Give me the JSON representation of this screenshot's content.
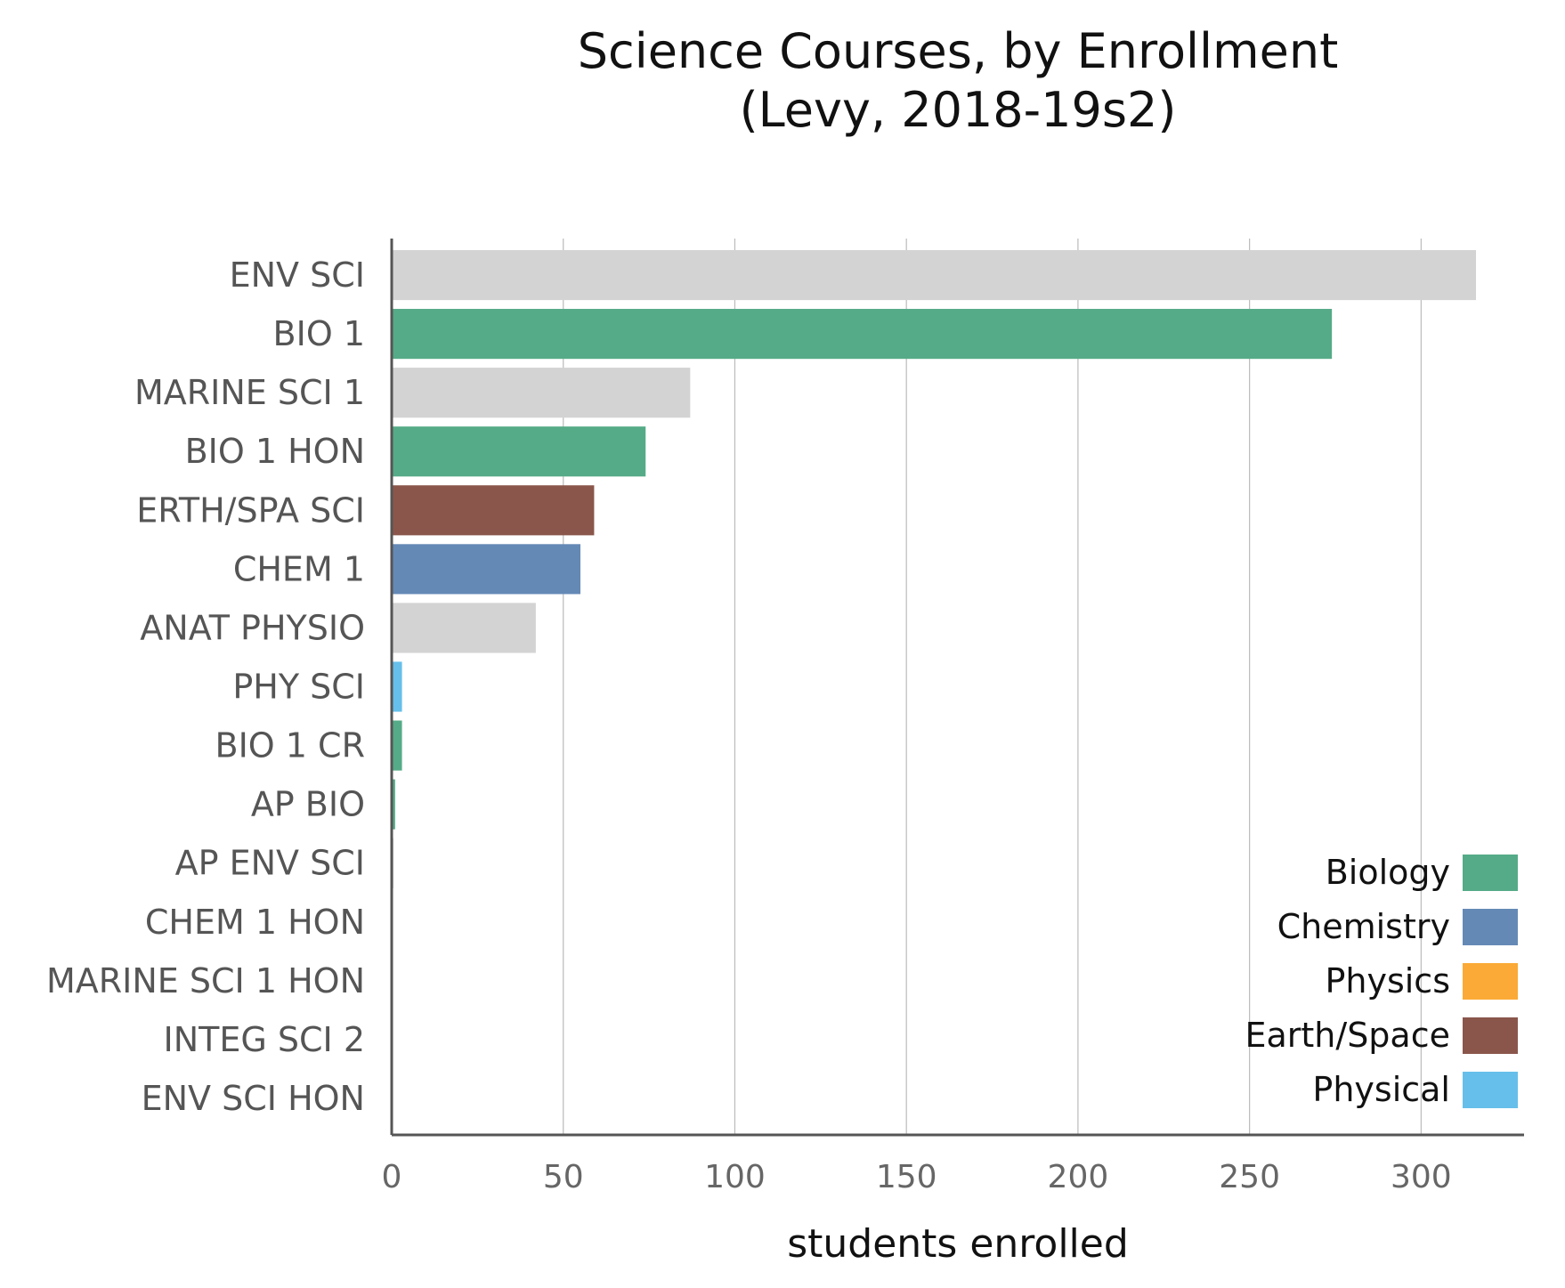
{
  "chart_data": {
    "type": "bar",
    "orientation": "horizontal",
    "title": [
      "Science Courses, by Enrollment",
      "(Levy, 2018-19s2)"
    ],
    "xlabel": "students enrolled",
    "ylabel": "",
    "xlim": [
      0,
      330
    ],
    "xticks": [
      0,
      50,
      100,
      150,
      200,
      250,
      300
    ],
    "grid": "vertical",
    "legend_position": "bottom-right",
    "colors": {
      "Biology": "#55ab87",
      "Chemistry": "#6589b5",
      "Physics": "#fbaa37",
      "Earth/Space": "#8a564b",
      "Physical": "#66bfea",
      "Other": "#d3d3d3"
    },
    "legend": [
      "Biology",
      "Chemistry",
      "Physics",
      "Earth/Space",
      "Physical"
    ],
    "bars": [
      {
        "label": "ENV SCI",
        "value": 316,
        "group": "Other"
      },
      {
        "label": "BIO 1",
        "value": 274,
        "group": "Biology"
      },
      {
        "label": "MARINE SCI 1",
        "value": 87,
        "group": "Other"
      },
      {
        "label": "BIO 1 HON",
        "value": 74,
        "group": "Biology"
      },
      {
        "label": "ERTH/SPA SCI",
        "value": 59,
        "group": "Earth/Space"
      },
      {
        "label": "CHEM 1",
        "value": 55,
        "group": "Chemistry"
      },
      {
        "label": "ANAT PHYSIO",
        "value": 42,
        "group": "Other"
      },
      {
        "label": "PHY SCI",
        "value": 3,
        "group": "Physical"
      },
      {
        "label": "BIO 1 CR",
        "value": 3,
        "group": "Biology"
      },
      {
        "label": "AP BIO",
        "value": 1,
        "group": "Biology"
      },
      {
        "label": "AP ENV SCI",
        "value": 0.5,
        "group": "Other"
      },
      {
        "label": "CHEM 1 HON",
        "value": 0,
        "group": "Chemistry"
      },
      {
        "label": "MARINE SCI 1 HON",
        "value": 0,
        "group": "Other"
      },
      {
        "label": "INTEG SCI 2",
        "value": 0,
        "group": "Other"
      },
      {
        "label": "ENV SCI HON",
        "value": 0,
        "group": "Other"
      }
    ]
  }
}
